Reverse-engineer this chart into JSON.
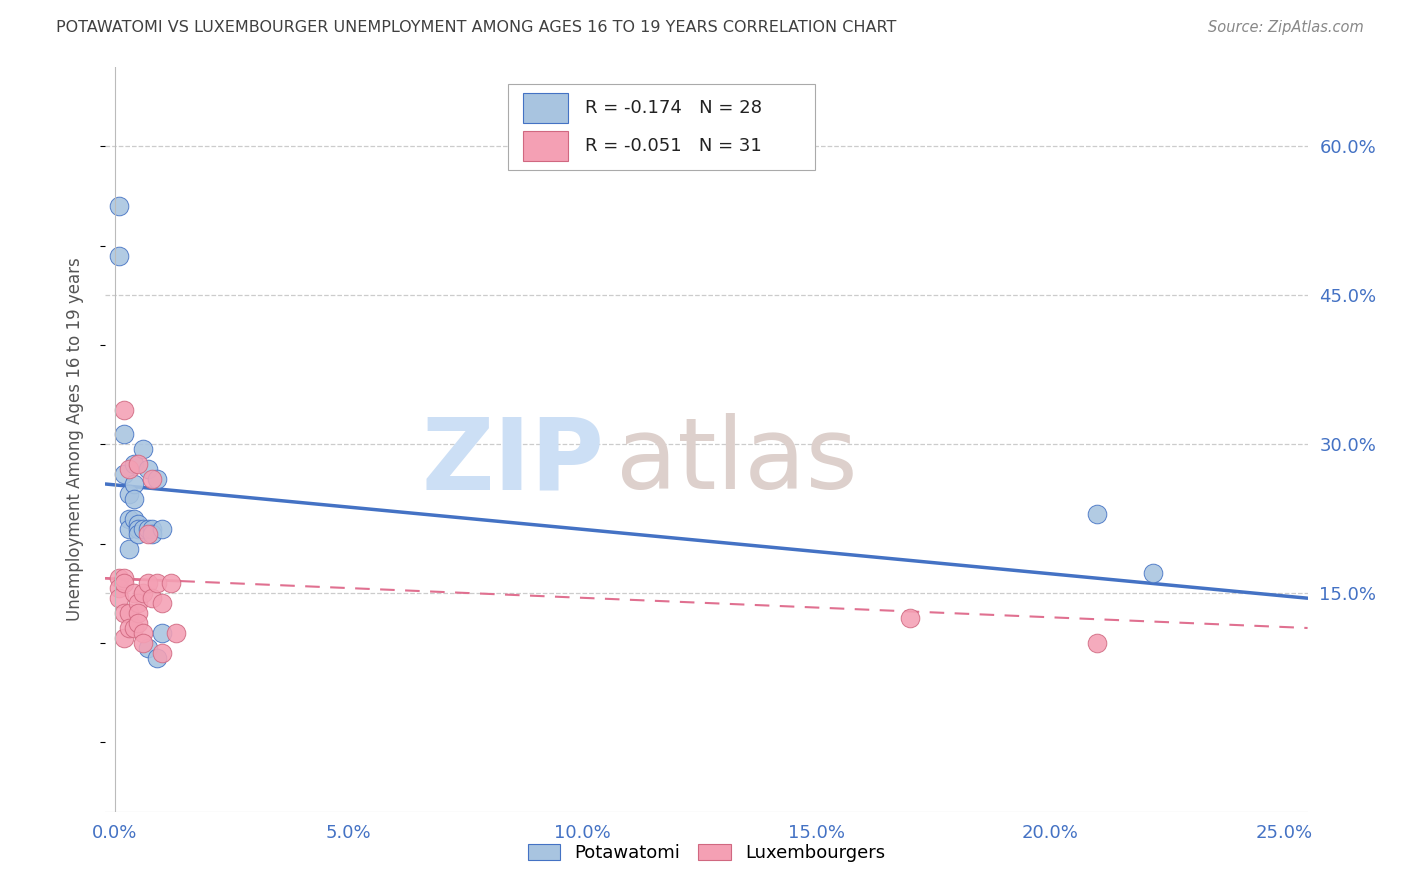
{
  "title": "POTAWATOMI VS LUXEMBOURGER UNEMPLOYMENT AMONG AGES 16 TO 19 YEARS CORRELATION CHART",
  "source": "Source: ZipAtlas.com",
  "ylabel": "Unemployment Among Ages 16 to 19 years",
  "right_ytick_labels": [
    "60.0%",
    "45.0%",
    "30.0%",
    "15.0%"
  ],
  "right_ytick_vals": [
    0.6,
    0.45,
    0.3,
    0.15
  ],
  "xtick_labels": [
    "0.0%",
    "5.0%",
    "10.0%",
    "15.0%",
    "20.0%",
    "25.0%"
  ],
  "xtick_vals": [
    0.0,
    0.05,
    0.1,
    0.15,
    0.2,
    0.25
  ],
  "xlim": [
    -0.002,
    0.255
  ],
  "ylim": [
    -0.07,
    0.68
  ],
  "legend_r1": "-0.174",
  "legend_n1": "28",
  "legend_r2": "-0.051",
  "legend_n2": "31",
  "potawatomi_color": "#a8c4e0",
  "potawatomi_edge": "#4472c4",
  "luxembourger_color": "#f4a0b4",
  "luxembourger_edge": "#d06880",
  "trend_blue": "#4472c4",
  "trend_pink": "#e07090",
  "grid_color": "#cccccc",
  "background_color": "#ffffff",
  "title_color": "#404040",
  "axis_label_color": "#4472c4",
  "watermark_zip_color": "#ccdff5",
  "watermark_atlas_color": "#ddd0cc",
  "potawatomi_x": [
    0.001,
    0.001,
    0.002,
    0.002,
    0.003,
    0.003,
    0.003,
    0.003,
    0.004,
    0.004,
    0.004,
    0.004,
    0.005,
    0.005,
    0.005,
    0.006,
    0.006,
    0.007,
    0.007,
    0.007,
    0.008,
    0.008,
    0.009,
    0.009,
    0.01,
    0.01,
    0.21,
    0.222
  ],
  "potawatomi_y": [
    0.54,
    0.49,
    0.31,
    0.27,
    0.25,
    0.225,
    0.215,
    0.195,
    0.28,
    0.26,
    0.245,
    0.225,
    0.22,
    0.215,
    0.21,
    0.295,
    0.215,
    0.275,
    0.215,
    0.095,
    0.215,
    0.21,
    0.265,
    0.085,
    0.215,
    0.11,
    0.23,
    0.17
  ],
  "luxembourger_x": [
    0.001,
    0.001,
    0.001,
    0.002,
    0.002,
    0.002,
    0.002,
    0.002,
    0.003,
    0.003,
    0.003,
    0.004,
    0.004,
    0.005,
    0.005,
    0.005,
    0.005,
    0.006,
    0.006,
    0.006,
    0.007,
    0.007,
    0.008,
    0.008,
    0.009,
    0.01,
    0.01,
    0.012,
    0.013,
    0.17,
    0.21
  ],
  "luxembourger_y": [
    0.165,
    0.155,
    0.145,
    0.335,
    0.165,
    0.16,
    0.13,
    0.105,
    0.275,
    0.13,
    0.115,
    0.15,
    0.115,
    0.28,
    0.14,
    0.13,
    0.12,
    0.15,
    0.11,
    0.1,
    0.16,
    0.21,
    0.145,
    0.265,
    0.16,
    0.14,
    0.09,
    0.16,
    0.11,
    0.125,
    0.1
  ],
  "blue_trend_start_y": 0.26,
  "blue_trend_end_y": 0.145,
  "pink_trend_start_y": 0.165,
  "pink_trend_end_y": 0.115
}
